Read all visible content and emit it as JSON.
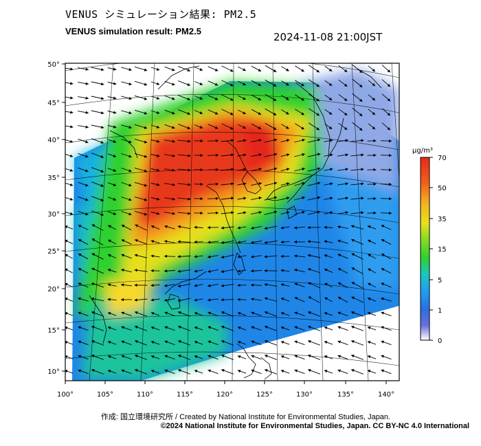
{
  "header": {
    "title_jp": "VENUS シミュレーション結果: PM2.5",
    "title_en": "VENUS simulation result: PM2.5",
    "timestamp": "2024-11-08 21:00JST"
  },
  "map": {
    "lon_ticks": [
      "100°",
      "105°",
      "110°",
      "115°",
      "120°",
      "125°",
      "130°",
      "135°",
      "140°"
    ],
    "lat_ticks": [
      "50°",
      "45°",
      "40°",
      "35°",
      "30°",
      "25°",
      "20°",
      "15°",
      "10°"
    ],
    "lon_range": [
      100,
      142
    ],
    "lat_range": [
      9,
      51
    ]
  },
  "colorbar": {
    "unit": "μg/m³",
    "ticks": [
      "70",
      "50",
      "35",
      "15",
      "5",
      "1",
      "0"
    ],
    "colors": [
      "#ffffff",
      "#4a52d0",
      "#1f8fe8",
      "#19c8c0",
      "#2ed12e",
      "#e8e21b",
      "#f39a1e",
      "#e52a1a"
    ]
  },
  "credits": {
    "line1": "作成: 国立環境研究所 / Created by National Institute for Environmental Studies, Japan.",
    "line2": "©2024 National Institute for Environmental Studies, Japan. CC BY-NC 4.0 International"
  }
}
